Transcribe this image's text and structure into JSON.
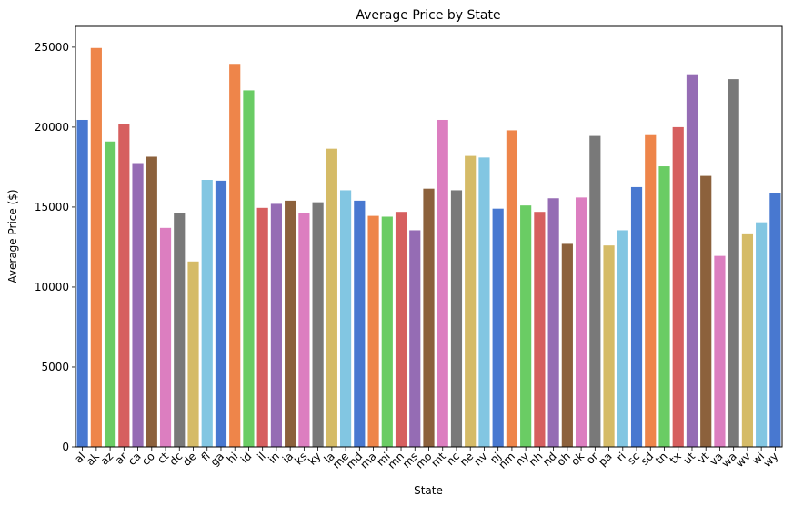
{
  "chart_data": {
    "type": "bar",
    "title": "Average Price by State",
    "xlabel": "State",
    "ylabel": "Average Price ($)",
    "ylim": [
      0,
      26300
    ],
    "yticks": [
      0,
      5000,
      10000,
      15000,
      20000,
      25000
    ],
    "grid": false,
    "categories": [
      "al",
      "ak",
      "az",
      "ar",
      "ca",
      "co",
      "ct",
      "dc",
      "de",
      "fl",
      "ga",
      "hi",
      "id",
      "il",
      "in",
      "ia",
      "ks",
      "ky",
      "la",
      "me",
      "md",
      "ma",
      "mi",
      "mn",
      "ms",
      "mo",
      "mt",
      "nc",
      "ne",
      "nv",
      "nj",
      "nm",
      "ny",
      "nh",
      "nd",
      "oh",
      "ok",
      "or",
      "pa",
      "ri",
      "sc",
      "sd",
      "tn",
      "tx",
      "ut",
      "vt",
      "va",
      "wa",
      "wv",
      "wi",
      "wy"
    ],
    "values": [
      20450,
      24950,
      19100,
      20200,
      17750,
      18150,
      13700,
      14650,
      11600,
      16700,
      16650,
      23900,
      22300,
      14950,
      15200,
      15400,
      14600,
      15300,
      18650,
      16050,
      15400,
      14450,
      14400,
      14700,
      13550,
      16150,
      20450,
      16050,
      18200,
      18100,
      14900,
      19800,
      15100,
      14700,
      15550,
      12700,
      15600,
      19450,
      12600,
      13550,
      16250,
      19500,
      17550,
      20000,
      23250,
      16950,
      11950,
      23000,
      13300,
      14050,
      15850
    ],
    "palette": [
      "#4878d0",
      "#ee854a",
      "#6acc64",
      "#d65f5f",
      "#956cb4",
      "#8c613c",
      "#dc7ec0",
      "#797979",
      "#d5bb67",
      "#82c6e2"
    ]
  }
}
